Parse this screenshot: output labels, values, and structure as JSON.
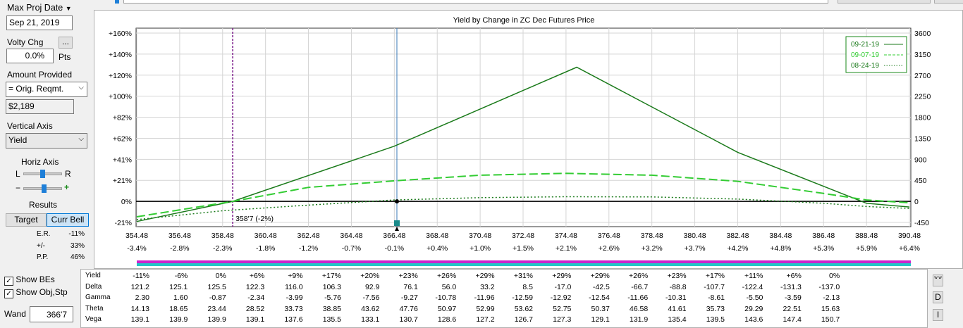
{
  "controls": {
    "max_proj_date_label": "Max Proj Date",
    "max_proj_date_value": "Sep 21, 2019",
    "volty_chg_label": "Volty Chg",
    "volty_chg_button": "...",
    "volty_chg_value": "0.0%",
    "volty_chg_unit": "Pts",
    "amount_provided_label": "Amount Provided",
    "amount_provided_value": "= Orig. Reqmt.",
    "amount_value": "$2,189",
    "vertical_axis_label": "Vertical Axis",
    "vertical_axis_value": "Yield",
    "horiz_axis_label": "Horiz Axis",
    "horiz_l": "L",
    "horiz_r": "R",
    "zoom_minus": "−",
    "zoom_plus": "+",
    "results_label": "Results",
    "target_button": "Target",
    "curr_bell_button": "Curr Bell",
    "stats": [
      {
        "label": "E.R.",
        "value": "-11%"
      },
      {
        "label": "+/-",
        "value": "33%"
      },
      {
        "label": "P.P.",
        "value": "46%"
      }
    ],
    "show_bes_label": "Show BEs",
    "show_obj_stp_label": "Show Obj,Stp",
    "wand_label": "Wand",
    "wand_value": "366'7"
  },
  "side_buttons": {
    "ww": "w w",
    "d": "D",
    "i": "I"
  },
  "chart_data": {
    "type": "line",
    "title": "Yield by Change in ZC Dec Futures Price",
    "x_ticks": [
      "354.48",
      "356.48",
      "358.48",
      "360.48",
      "362.48",
      "364.48",
      "366.48",
      "368.48",
      "370.48",
      "372.48",
      "374.48",
      "376.48",
      "378.48",
      "380.48",
      "382.48",
      "384.48",
      "386.48",
      "388.48",
      "390.48"
    ],
    "x_pct_ticks": [
      "-3.4%",
      "-2.8%",
      "-2.3%",
      "-1.8%",
      "-1.2%",
      "-0.7%",
      "-0.1%",
      "+0.4%",
      "+1.0%",
      "+1.5%",
      "+2.1%",
      "+2.6%",
      "+3.2%",
      "+3.7%",
      "+4.2%",
      "+4.8%",
      "+5.3%",
      "+5.9%",
      "+6.4%"
    ],
    "y_ticks_left": [
      "+160%",
      "+140%",
      "+120%",
      "+100%",
      "+82%",
      "+62%",
      "+41%",
      "+21%",
      "0%",
      "-21%"
    ],
    "y_ticks_right": [
      "3600",
      "3150",
      "2700",
      "2250",
      "1800",
      "1350",
      "900",
      "450",
      "0",
      "-450"
    ],
    "xlim": [
      354.48,
      390.48
    ],
    "ylim": [
      -450,
      3600
    ],
    "grid": true,
    "legend_position": "top-right",
    "breakeven_label": "358'7 (-2%)",
    "breakeven_x": 358.95,
    "current_price_x": 366.6,
    "series": [
      {
        "name": "09-21-19",
        "color": "#1a7a1a",
        "style": "solid",
        "x": [
          354.48,
          358.95,
          366.48,
          374.98,
          382.48,
          388.48,
          390.48
        ],
        "y": [
          -430,
          0,
          1180,
          2870,
          1050,
          -40,
          -120
        ]
      },
      {
        "name": "09-07-19",
        "color": "#33cc33",
        "style": "dash",
        "x": [
          354.48,
          358.95,
          362.48,
          366.48,
          370.48,
          374.48,
          378.48,
          382.48,
          386.48,
          388.48,
          390.48
        ],
        "y": [
          -330,
          0,
          300,
          440,
          560,
          600,
          560,
          430,
          170,
          30,
          -30
        ]
      },
      {
        "name": "08-24-19",
        "color": "#1a7a1a",
        "style": "dot",
        "x": [
          354.48,
          358.48,
          362.48,
          366.48,
          370.48,
          374.48,
          378.48,
          382.48,
          386.48,
          388.48,
          390.48
        ],
        "y": [
          -390,
          -200,
          -80,
          30,
          80,
          100,
          95,
          50,
          -40,
          -110,
          -150
        ]
      }
    ]
  },
  "greeks": {
    "rows": [
      {
        "label": "Yield",
        "values": [
          "-11%",
          "-6%",
          "0%",
          "+6%",
          "+9%",
          "+17%",
          "+20%",
          "+23%",
          "+26%",
          "+29%",
          "+31%",
          "+29%",
          "+29%",
          "+26%",
          "+23%",
          "+17%",
          "+11%",
          "+6%",
          "0%"
        ]
      },
      {
        "label": "Delta",
        "values": [
          "121.2",
          "125.1",
          "125.5",
          "122.3",
          "116.0",
          "106.3",
          "92.9",
          "76.1",
          "56.0",
          "33.2",
          "8.5",
          "-17.0",
          "-42.5",
          "-66.7",
          "-88.8",
          "-107.7",
          "-122.4",
          "-131.3",
          "-137.0"
        ]
      },
      {
        "label": "Gamma",
        "values": [
          "2.30",
          "1.60",
          "-0.87",
          "-2.34",
          "-3.99",
          "-5.76",
          "-7.56",
          "-9.27",
          "-10.78",
          "-11.96",
          "-12.59",
          "-12.92",
          "-12.54",
          "-11.66",
          "-10.31",
          "-8.61",
          "-5.50",
          "-3.59",
          "-2.13"
        ]
      },
      {
        "label": "Theta",
        "values": [
          "14.13",
          "18.65",
          "23.44",
          "28.52",
          "33.73",
          "38.85",
          "43.62",
          "47.76",
          "50.97",
          "52.99",
          "53.62",
          "52.75",
          "50.37",
          "46.58",
          "41.61",
          "35.73",
          "29.29",
          "22.51",
          "15.63"
        ]
      },
      {
        "label": "Vega",
        "values": [
          "139.1",
          "139.9",
          "139.9",
          "139.1",
          "137.6",
          "135.5",
          "133.1",
          "130.7",
          "128.6",
          "127.2",
          "126.7",
          "127.3",
          "129.1",
          "131.9",
          "135.4",
          "139.5",
          "143.6",
          "147.4",
          "150.7"
        ]
      }
    ]
  },
  "colors": {
    "accent_bar_top": "#cc22cc",
    "accent_bar_bottom": "#22c6c6",
    "legend_border": "#1a8a1a"
  }
}
